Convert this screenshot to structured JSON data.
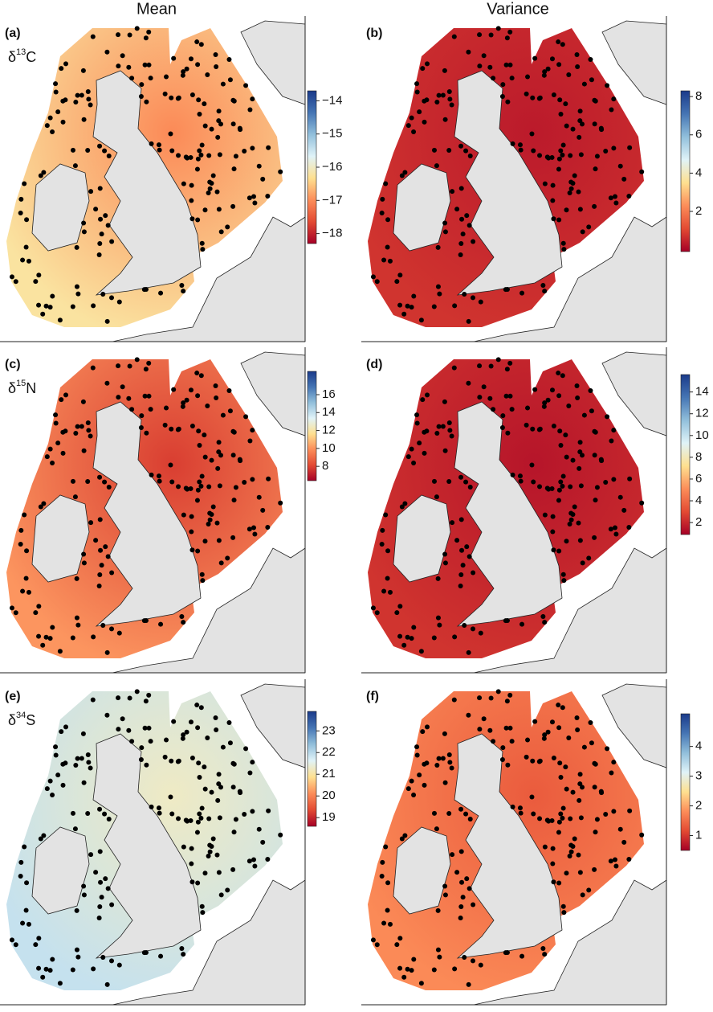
{
  "column_titles": [
    "Mean",
    "Variance"
  ],
  "colormap": [
    "#a50026",
    "#e34a33",
    "#fc8d59",
    "#fee090",
    "#e0f3f8",
    "#91bfdb",
    "#4575b4",
    "#1a3a8a"
  ],
  "panels": [
    {
      "label": "(a)",
      "isotope": {
        "symbol": "δ",
        "mass": "13",
        "element": "C"
      },
      "colorbar": {
        "lim": [
          -18.3,
          -13.7
        ],
        "ticks": [
          {
            "value": -18,
            "label": "−18"
          },
          {
            "value": -17,
            "label": "−17"
          },
          {
            "value": -16,
            "label": "−16"
          },
          {
            "value": -15,
            "label": "−15"
          },
          {
            "value": -14,
            "label": "−14"
          }
        ]
      }
    },
    {
      "label": "(b)",
      "colorbar": {
        "lim": [
          -0.1,
          8.3
        ],
        "ticks": [
          2,
          4,
          6,
          8
        ]
      }
    },
    {
      "label": "(c)",
      "isotope": {
        "symbol": "δ",
        "mass": "15",
        "element": "N"
      },
      "colorbar": {
        "lim": [
          6.4,
          18.6
        ],
        "ticks": [
          8,
          10,
          12,
          14,
          16
        ]
      }
    },
    {
      "label": "(d)",
      "colorbar": {
        "lim": [
          0.9,
          15.6
        ],
        "ticks": [
          2,
          4,
          6,
          8,
          10,
          12,
          14
        ]
      }
    },
    {
      "label": "(e)",
      "isotope": {
        "symbol": "δ",
        "mass": "34",
        "element": "S"
      },
      "colorbar": {
        "lim": [
          18.6,
          23.9
        ],
        "ticks": [
          19,
          20,
          21,
          22,
          23
        ]
      }
    },
    {
      "label": "(f)",
      "colorbar": {
        "lim": [
          0.5,
          5.1
        ],
        "ticks": [
          1,
          2,
          3,
          4
        ]
      }
    }
  ]
}
